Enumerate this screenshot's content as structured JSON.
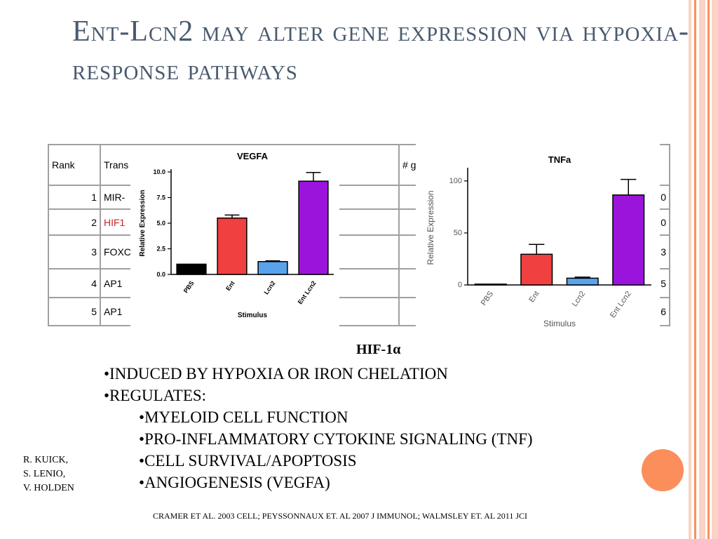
{
  "colors": {
    "title": "#4a5a6e",
    "accent_orange": "#fc8e5c",
    "stripe_light": "#fad3c4",
    "red_text": "#d02020",
    "bar_black": "#000000",
    "bar_red": "#f04040",
    "bar_blue": "#5aa2ec",
    "bar_purple": "#9b14dc"
  },
  "slide": {
    "title": "Ent-Lcn2 may alter gene expression via hypoxia-response pathways",
    "hif_heading": "HIF-1α",
    "bullets": [
      "•INDUCED BY HYPOXIA OR IRON CHELATION",
      "•REGULATES:",
      "•MYELOID CELL FUNCTION",
      "•PRO-INFLAMMATORY CYTOKINE SIGNALING (TNF)",
      "•CELL SURVIVAL/APOPTOSIS",
      "•ANGIOGENESIS (VEGFA)"
    ],
    "authors": [
      "R. KUICK,",
      "S. LENIO,",
      "V. HOLDEN"
    ],
    "citation": "CRAMER ET AL. 2003 CELL; PEYSSONNAUX ET. AL 2007 J IMMUNOL; WALMSLEY ET. AL 2011 JCI"
  },
  "table": {
    "headers": [
      "Rank",
      "Trans",
      "# g"
    ],
    "rows": [
      {
        "rank": "1",
        "name": "MIR-",
        "last": "0"
      },
      {
        "rank": "2",
        "name": "HIF1",
        "last": "0",
        "highlight": true
      },
      {
        "rank": "3",
        "name": "FOXC",
        "last": "3"
      },
      {
        "rank": "4",
        "name": "AP1",
        "last": "5"
      },
      {
        "rank": "5",
        "name": "AP1",
        "last": "6"
      }
    ]
  },
  "chart_data": [
    {
      "type": "bar",
      "title": "VEGFA",
      "xlabel": "Stimulus",
      "ylabel": "Relative Expression",
      "categories": [
        "PBS",
        "Ent",
        "Lcn2",
        "Ent Lcn2"
      ],
      "values": [
        1.0,
        5.5,
        1.25,
        9.1
      ],
      "errors": [
        0,
        0.3,
        0.08,
        0.85
      ],
      "ylim": [
        0,
        10
      ],
      "yticks": [
        "0.0",
        "2.5",
        "5.0",
        "7.5",
        "10.0"
      ],
      "bar_colors": [
        "#000000",
        "#f04040",
        "#5aa2ec",
        "#9b14dc"
      ]
    },
    {
      "type": "bar",
      "title": "TNFa",
      "xlabel": "Stimulus",
      "ylabel": "Relative Expression",
      "categories": [
        "PBS",
        "Ent",
        "Lcn2",
        "Ent Lcn2"
      ],
      "values": [
        0.8,
        29.5,
        6.5,
        86.5
      ],
      "errors": [
        0,
        9.5,
        1.0,
        15
      ],
      "ylim": [
        0,
        110
      ],
      "yticks": [
        "0",
        "50",
        "100"
      ],
      "bar_colors": [
        "#000000",
        "#f04040",
        "#5aa2ec",
        "#9b14dc"
      ]
    }
  ]
}
